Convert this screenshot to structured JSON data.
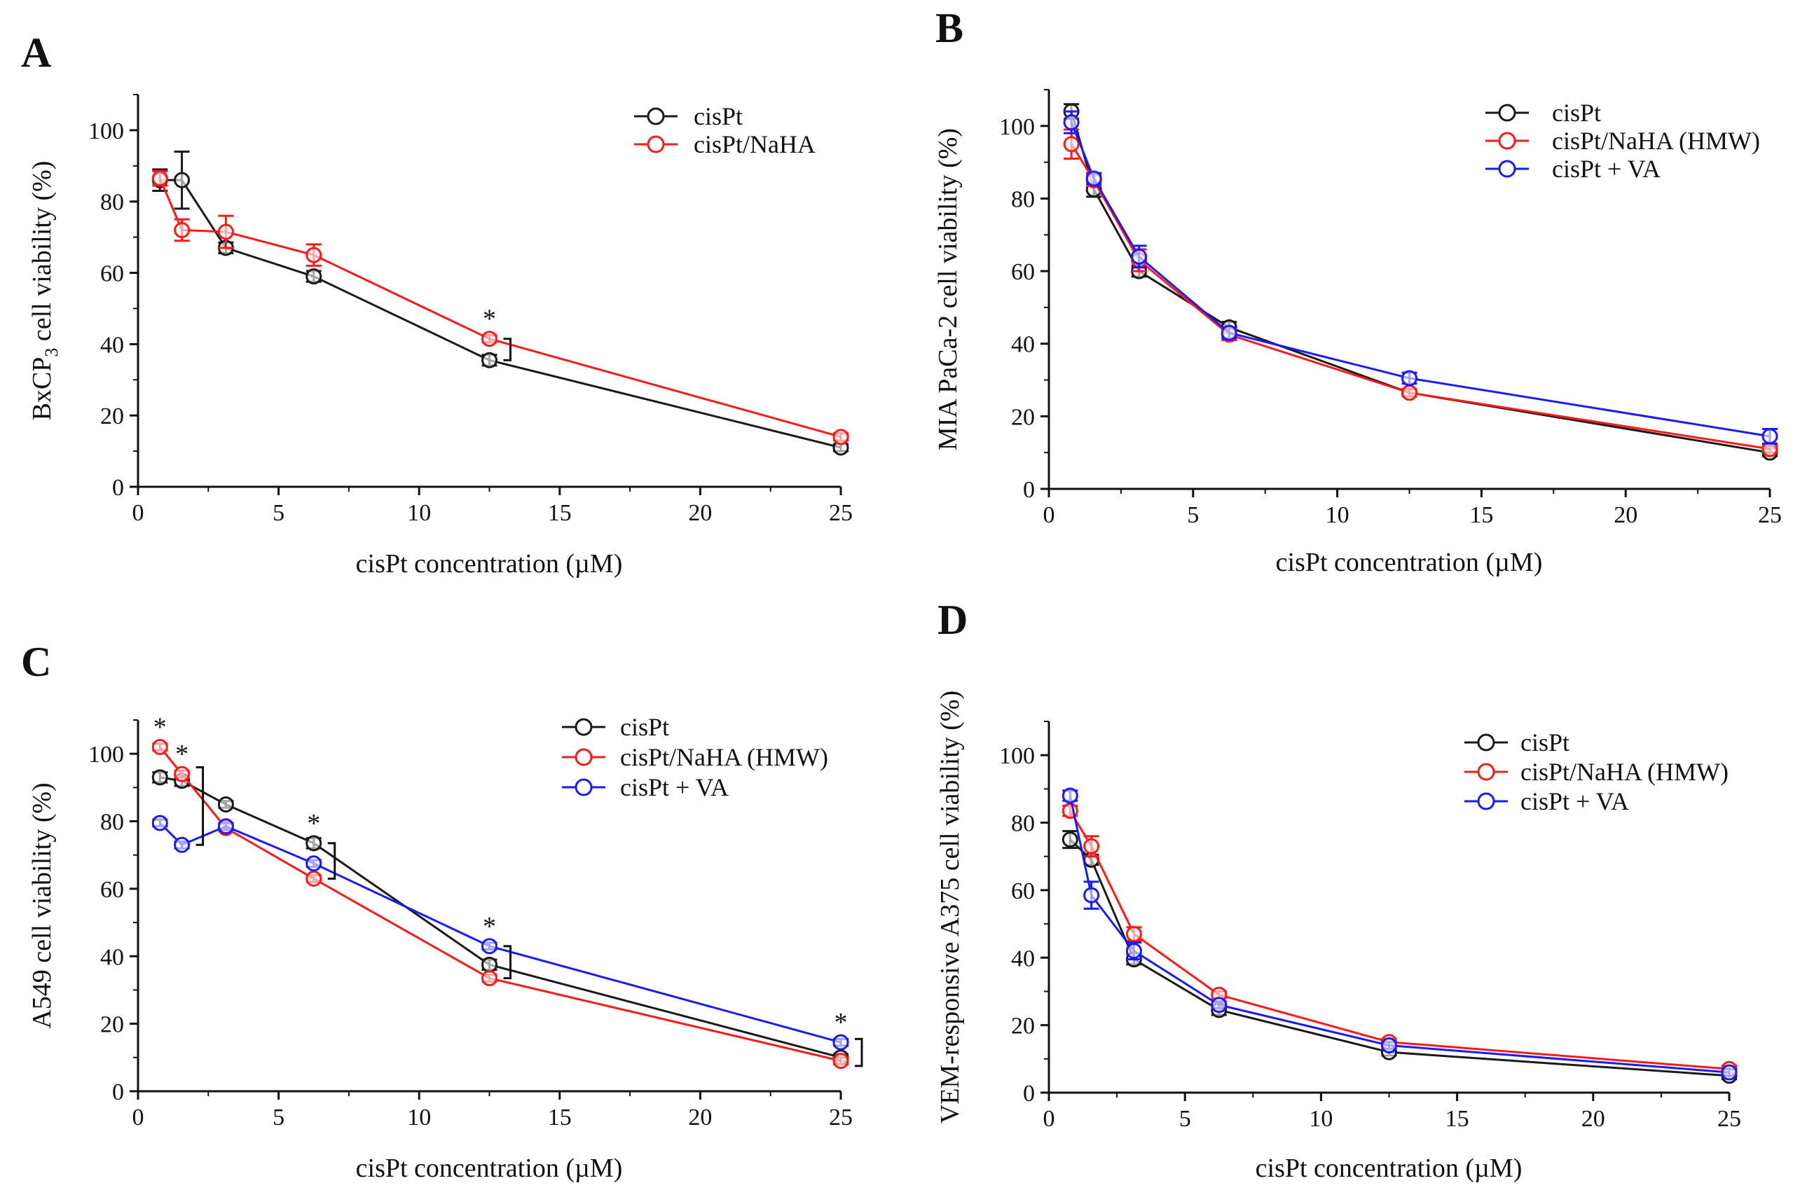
{
  "chart_data": [
    {
      "panel": "A",
      "type": "line",
      "title": "",
      "xlabel": "cisPt concentration (µM)",
      "ylabel": "BxCP3 cell viability (%)",
      "ylabel_main": "BxCP",
      "ylabel_sub": "3",
      "ylabel_rest": " cell viability (%)",
      "xlim": [
        0,
        25
      ],
      "ylim": [
        0,
        110
      ],
      "xticks": [
        0,
        5,
        10,
        15,
        20,
        25
      ],
      "yticks": [
        0,
        20,
        40,
        60,
        80,
        100
      ],
      "legend_position": "top-right",
      "series": [
        {
          "name": "cisPt",
          "color": "#1a1a1a",
          "x": [
            0.78,
            1.56,
            3.125,
            6.25,
            12.5,
            25
          ],
          "y": [
            86,
            86,
            67,
            59,
            35.5,
            11
          ],
          "err": [
            3,
            8,
            1.5,
            1.5,
            1.5,
            1
          ]
        },
        {
          "name": "cisPt/NaHA",
          "color": "#ff1a1a",
          "x": [
            0.78,
            1.56,
            3.125,
            6.25,
            12.5,
            25
          ],
          "y": [
            86.5,
            72,
            71.5,
            65,
            41.5,
            14
          ],
          "err": [
            2,
            3,
            4.5,
            3,
            1,
            1
          ]
        }
      ],
      "annotations": [
        {
          "text": "*",
          "x": 12.5,
          "y": 41.5,
          "y_lo": 35.5,
          "y_hi": 41.5
        }
      ]
    },
    {
      "panel": "B",
      "type": "line",
      "title": "",
      "xlabel": "cisPt concentration (µM)",
      "ylabel": "MIA PaCa-2 cell viability (%)",
      "xlim": [
        0,
        25
      ],
      "ylim": [
        0,
        110
      ],
      "xticks": [
        0,
        5,
        10,
        15,
        20,
        25
      ],
      "yticks": [
        0,
        20,
        40,
        60,
        80,
        100
      ],
      "legend_position": "top-right",
      "series": [
        {
          "name": "cisPt",
          "color": "#1a1a1a",
          "x": [
            0.78,
            1.56,
            3.125,
            6.25,
            12.5,
            25
          ],
          "y": [
            104,
            82.5,
            60,
            44.5,
            26.5,
            10
          ],
          "err": [
            2,
            2,
            1.5,
            1.5,
            1,
            1
          ]
        },
        {
          "name": "cisPt/NaHA (HMW)",
          "color": "#ff1a1a",
          "x": [
            0.78,
            1.56,
            3.125,
            6.25,
            12.5,
            25
          ],
          "y": [
            95,
            85,
            63,
            42.5,
            26.5,
            11
          ],
          "err": [
            4,
            1.5,
            3,
            1.5,
            1,
            1
          ]
        },
        {
          "name": "cisPt + VA",
          "color": "#1a1aff",
          "x": [
            0.78,
            1.56,
            3.125,
            6.25,
            12.5,
            25
          ],
          "y": [
            101,
            85.5,
            64,
            43,
            30.5,
            14.5
          ],
          "err": [
            3,
            1.5,
            3,
            1.5,
            1.5,
            2
          ]
        }
      ],
      "annotations": []
    },
    {
      "panel": "C",
      "type": "line",
      "title": "",
      "xlabel": "cisPt concentration (µM)",
      "ylabel": "A549 cell viability (%)",
      "xlim": [
        0,
        25
      ],
      "ylim": [
        0,
        110
      ],
      "xticks": [
        0,
        5,
        10,
        15,
        20,
        25
      ],
      "yticks": [
        0,
        20,
        40,
        60,
        80,
        100
      ],
      "legend_position": "top-right",
      "series": [
        {
          "name": "cisPt",
          "color": "#1a1a1a",
          "x": [
            0.78,
            1.56,
            3.125,
            6.25,
            12.5,
            25
          ],
          "y": [
            93,
            92,
            85,
            73.5,
            37.5,
            10
          ],
          "err": [
            1.5,
            1.5,
            1,
            1.5,
            1.5,
            1
          ]
        },
        {
          "name": "cisPt/NaHA (HMW)",
          "color": "#ff1a1a",
          "x": [
            0.78,
            1.56,
            3.125,
            6.25,
            12.5,
            25
          ],
          "y": [
            102,
            94,
            78,
            63,
            33.5,
            9
          ],
          "err": [
            1,
            1,
            1,
            1,
            1,
            1
          ]
        },
        {
          "name": "cisPt + VA",
          "color": "#1a1aff",
          "x": [
            0.78,
            1.56,
            3.125,
            6.25,
            12.5,
            25
          ],
          "y": [
            79.5,
            73,
            78.5,
            67.5,
            43,
            14.5
          ],
          "err": [
            1,
            1,
            1,
            1,
            1,
            1
          ]
        }
      ],
      "annotations": [
        {
          "text": "*",
          "x": 0.78,
          "y": 102
        },
        {
          "text": "*",
          "x": 1.56,
          "y": 94,
          "y_lo": 73,
          "y_hi": 96
        },
        {
          "text": "*",
          "x": 6.25,
          "y": 73.5,
          "y_lo": 63,
          "y_hi": 73.5
        },
        {
          "text": "*",
          "x": 12.5,
          "y": 43,
          "y_lo": 33.5,
          "y_hi": 43
        },
        {
          "text": "*",
          "x": 25,
          "y": 14.5,
          "y_lo": 7.5,
          "y_hi": 15.5
        }
      ]
    },
    {
      "panel": "D",
      "type": "line",
      "title": "",
      "xlabel": "cisPt concentration (µM)",
      "ylabel": "VEM-responsive A375 cell viability (%)",
      "xlim": [
        0,
        25
      ],
      "ylim": [
        0,
        110
      ],
      "xticks": [
        0,
        5,
        10,
        15,
        20,
        25
      ],
      "yticks": [
        0,
        20,
        40,
        60,
        80,
        100
      ],
      "legend_position": "top-right",
      "series": [
        {
          "name": "cisPt",
          "color": "#1a1a1a",
          "x": [
            0.78,
            1.56,
            3.125,
            6.25,
            12.5,
            25
          ],
          "y": [
            75,
            69,
            39.5,
            24.5,
            12,
            5
          ],
          "err": [
            2.5,
            1.5,
            1.5,
            1.5,
            1,
            1
          ]
        },
        {
          "name": "cisPt/NaHA (HMW)",
          "color": "#ff1a1a",
          "x": [
            0.78,
            1.56,
            3.125,
            6.25,
            12.5,
            25
          ],
          "y": [
            83.5,
            73,
            47,
            29,
            15,
            7
          ],
          "err": [
            1.5,
            3,
            2,
            1,
            1,
            1
          ]
        },
        {
          "name": "cisPt + VA",
          "color": "#1a1aff",
          "x": [
            0.78,
            1.56,
            3.125,
            6.25,
            12.5,
            25
          ],
          "y": [
            88,
            58.5,
            42,
            26,
            14,
            6
          ],
          "err": [
            1.5,
            4,
            2.5,
            1,
            1,
            1
          ]
        }
      ],
      "annotations": []
    }
  ]
}
